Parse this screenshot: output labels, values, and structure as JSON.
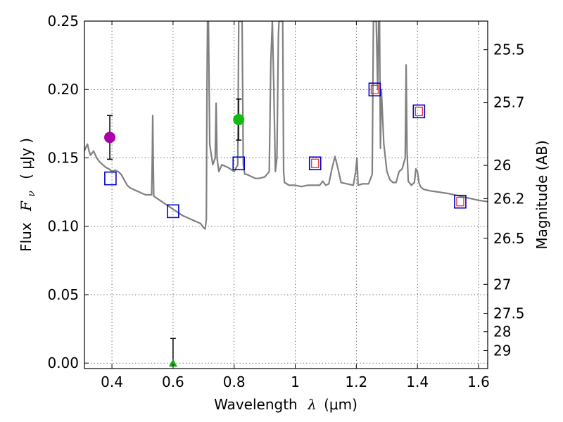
{
  "chart_data": {
    "type": "line",
    "title": "",
    "xlabel": "Wavelength",
    "xlabel_symbol": "λ",
    "xlabel_unit": "(μm)",
    "ylabel": "Flux",
    "ylabel_symbol": "F",
    "ylabel_subscript": "ν",
    "ylabel_unit": "( μJy )",
    "y2label": "Magnitude (AB)",
    "xlim": [
      0.31,
      1.63
    ],
    "ylim": [
      -0.004,
      0.25
    ],
    "grid": true,
    "x_ticks": [
      {
        "value": 0.4,
        "label": "0.4"
      },
      {
        "value": 0.6,
        "label": "0.6"
      },
      {
        "value": 0.8,
        "label": "0.8"
      },
      {
        "value": 1.0,
        "label": "1"
      },
      {
        "value": 1.2,
        "label": "1.2"
      },
      {
        "value": 1.4,
        "label": "1.4"
      },
      {
        "value": 1.6,
        "label": "1.6"
      }
    ],
    "y_ticks": [
      {
        "value": 0.0,
        "label": "0.00"
      },
      {
        "value": 0.05,
        "label": "0.05"
      },
      {
        "value": 0.1,
        "label": "0.10"
      },
      {
        "value": 0.15,
        "label": "0.15"
      },
      {
        "value": 0.2,
        "label": "0.20"
      },
      {
        "value": 0.25,
        "label": "0.25"
      }
    ],
    "y2_ticks": [
      {
        "value": 25.5,
        "label": "25.5"
      },
      {
        "value": 25.7,
        "label": "25.7"
      },
      {
        "value": 26,
        "label": "26"
      },
      {
        "value": 26.2,
        "label": "26.2"
      },
      {
        "value": 26.5,
        "label": "26.5"
      },
      {
        "value": 27,
        "label": "27"
      },
      {
        "value": 27.5,
        "label": "27.5"
      },
      {
        "value": 28,
        "label": "28"
      },
      {
        "value": 29,
        "label": "29"
      }
    ],
    "series": [
      {
        "name": "model SED",
        "color": "#808080",
        "x": [
          0.31,
          0.315,
          0.32,
          0.325,
          0.33,
          0.34,
          0.35,
          0.36,
          0.37,
          0.38,
          0.39,
          0.4,
          0.41,
          0.42,
          0.43,
          0.44,
          0.45,
          0.46,
          0.47,
          0.48,
          0.49,
          0.5,
          0.51,
          0.52,
          0.53,
          0.532,
          0.5335,
          0.535,
          0.537,
          0.55,
          0.57,
          0.59,
          0.61,
          0.63,
          0.65,
          0.67,
          0.69,
          0.7,
          0.705,
          0.709,
          0.711,
          0.713,
          0.716,
          0.72,
          0.73,
          0.738,
          0.741,
          0.744,
          0.75,
          0.76,
          0.78,
          0.8,
          0.812,
          0.815,
          0.818,
          0.822,
          0.826,
          0.83,
          0.835,
          0.84,
          0.85,
          0.86,
          0.87,
          0.88,
          0.9,
          0.915,
          0.92,
          0.925,
          0.93,
          0.935,
          0.94,
          0.945,
          0.947,
          0.949,
          0.951,
          0.955,
          0.957,
          0.959,
          0.962,
          0.965,
          0.98,
          1.0,
          1.02,
          1.04,
          1.06,
          1.08,
          1.09,
          1.1,
          1.11,
          1.12,
          1.13,
          1.14,
          1.15,
          1.17,
          1.19,
          1.198,
          1.202,
          1.206,
          1.22,
          1.24,
          1.252,
          1.256,
          1.26,
          1.265,
          1.27,
          1.273,
          1.276,
          1.279,
          1.282,
          1.29,
          1.3,
          1.31,
          1.32,
          1.33,
          1.34,
          1.35,
          1.36,
          1.363,
          1.366,
          1.37,
          1.38,
          1.39,
          1.395,
          1.4,
          1.405,
          1.41,
          1.42,
          1.44,
          1.47,
          1.5,
          1.52,
          1.54,
          1.56,
          1.58,
          1.6,
          1.63
        ],
        "y": [
          0.155,
          0.158,
          0.16,
          0.155,
          0.152,
          0.155,
          0.15,
          0.147,
          0.145,
          0.143,
          0.142,
          0.14,
          0.141,
          0.14,
          0.138,
          0.134,
          0.13,
          0.128,
          0.127,
          0.126,
          0.125,
          0.124,
          0.123,
          0.123,
          0.123,
          0.15,
          0.181,
          0.15,
          0.122,
          0.12,
          0.117,
          0.114,
          0.111,
          0.108,
          0.106,
          0.104,
          0.102,
          0.099,
          0.098,
          0.105,
          0.2,
          0.25,
          0.25,
          0.16,
          0.145,
          0.15,
          0.19,
          0.15,
          0.14,
          0.145,
          0.143,
          0.14,
          0.145,
          0.25,
          0.25,
          0.25,
          0.25,
          0.145,
          0.138,
          0.138,
          0.137,
          0.136,
          0.135,
          0.135,
          0.136,
          0.14,
          0.22,
          0.25,
          0.2,
          0.14,
          0.15,
          0.24,
          0.25,
          0.25,
          0.25,
          0.25,
          0.25,
          0.25,
          0.14,
          0.132,
          0.13,
          0.13,
          0.129,
          0.13,
          0.13,
          0.13,
          0.133,
          0.13,
          0.131,
          0.142,
          0.151,
          0.142,
          0.132,
          0.131,
          0.13,
          0.14,
          0.15,
          0.13,
          0.131,
          0.131,
          0.138,
          0.25,
          0.25,
          0.25,
          0.2,
          0.25,
          0.25,
          0.157,
          0.2,
          0.16,
          0.14,
          0.134,
          0.132,
          0.132,
          0.14,
          0.142,
          0.15,
          0.218,
          0.155,
          0.133,
          0.13,
          0.132,
          0.142,
          0.14,
          0.132,
          0.129,
          0.127,
          0.126,
          0.125,
          0.124,
          0.123,
          0.122,
          0.121,
          0.12,
          0.119,
          0.118
        ]
      }
    ],
    "photometry_boxes": [
      {
        "x": 0.395,
        "y": 0.135
      },
      {
        "x": 0.6,
        "y": 0.111
      },
      {
        "x": 0.815,
        "y": 0.146
      },
      {
        "x": 1.065,
        "y": 0.146
      },
      {
        "x": 1.26,
        "y": 0.2
      },
      {
        "x": 1.405,
        "y": 0.184
      },
      {
        "x": 1.54,
        "y": 0.118
      }
    ],
    "model_points": [
      {
        "x": 1.065,
        "y": 0.146
      },
      {
        "x": 1.26,
        "y": 0.2
      },
      {
        "x": 1.405,
        "y": 0.184
      },
      {
        "x": 1.54,
        "y": 0.118
      }
    ],
    "detections": [
      {
        "name": "purple point",
        "x": 0.393,
        "y": 0.165,
        "err_low": 0.149,
        "err_high": 0.181,
        "color": "#aa00aa"
      },
      {
        "name": "green point",
        "x": 0.815,
        "y": 0.178,
        "err_low": 0.163,
        "err_high": 0.193,
        "color": "#11bb11"
      }
    ],
    "upper_limits": [
      {
        "x": 0.6,
        "y": 0.0,
        "err_high": 0.018,
        "color": "#11aa11"
      }
    ],
    "colors": {
      "box": "#0000cc",
      "model_point": "#ee2222",
      "spectrum": "#808080"
    }
  }
}
